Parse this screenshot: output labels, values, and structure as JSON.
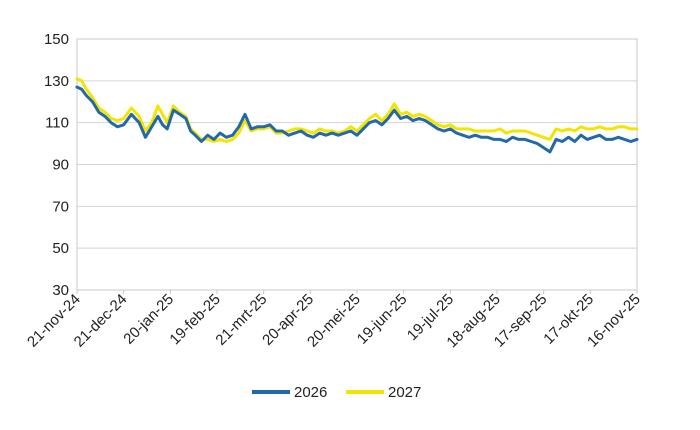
{
  "chart_data": {
    "type": "line",
    "title": "",
    "xlabel": "",
    "ylabel": "",
    "ylim": [
      30,
      150
    ],
    "yticks": [
      30,
      50,
      70,
      90,
      110,
      130,
      150
    ],
    "grid": "horizontal",
    "legend_position": "bottom-center",
    "x_tick_labels": [
      "21-nov-24",
      "21-dec-24",
      "20-jan-25",
      "19-feb-25",
      "21-mrt-25",
      "20-apr-25",
      "20-mei-25",
      "19-jun-25",
      "19-jul-25",
      "18-aug-25",
      "17-sep-25",
      "17-okt-25",
      "16-nov-25"
    ],
    "x_index_range": [
      0,
      360
    ],
    "series": [
      {
        "name": "2026",
        "color": "#2369a8",
        "x": [
          0,
          3,
          6,
          10,
          14,
          18,
          22,
          26,
          30,
          35,
          40,
          44,
          48,
          52,
          55,
          58,
          62,
          66,
          70,
          73,
          76,
          80,
          84,
          88,
          92,
          96,
          100,
          104,
          108,
          112,
          116,
          120,
          124,
          128,
          132,
          136,
          140,
          144,
          148,
          152,
          156,
          160,
          164,
          168,
          172,
          176,
          180,
          184,
          188,
          192,
          196,
          200,
          204,
          208,
          212,
          216,
          220,
          224,
          228,
          232,
          236,
          240,
          244,
          248,
          252,
          256,
          260,
          264,
          268,
          272,
          276,
          280,
          284,
          288,
          292,
          296,
          300,
          304,
          308,
          312,
          316,
          320,
          324,
          328,
          332,
          336,
          340,
          344,
          348,
          352,
          356,
          360
        ],
        "y": [
          127,
          126,
          123,
          120,
          115,
          113,
          110,
          108,
          109,
          114,
          110,
          103,
          108,
          113,
          109,
          107,
          116,
          114,
          112,
          106,
          104,
          101,
          104,
          102,
          105,
          103,
          104,
          108,
          114,
          107,
          108,
          108,
          109,
          106,
          106,
          104,
          105,
          106,
          104,
          103,
          105,
          104,
          105,
          104,
          105,
          106,
          104,
          107,
          110,
          111,
          109,
          112,
          116,
          112,
          113,
          111,
          112,
          111,
          109,
          107,
          106,
          107,
          105,
          104,
          103,
          104,
          103,
          103,
          102,
          102,
          101,
          103,
          102,
          102,
          101,
          100,
          98,
          96,
          102,
          101,
          103,
          101,
          104,
          102,
          103,
          104,
          102,
          102,
          103,
          102,
          101,
          102
        ]
      },
      {
        "name": "2027",
        "color": "#f2e500",
        "x": [
          0,
          3,
          6,
          10,
          14,
          18,
          22,
          26,
          30,
          35,
          40,
          44,
          48,
          52,
          55,
          58,
          62,
          66,
          70,
          73,
          76,
          80,
          84,
          88,
          92,
          96,
          100,
          104,
          108,
          112,
          116,
          120,
          124,
          128,
          132,
          136,
          140,
          144,
          148,
          152,
          156,
          160,
          164,
          168,
          172,
          176,
          180,
          184,
          188,
          192,
          196,
          200,
          204,
          208,
          212,
          216,
          220,
          224,
          228,
          232,
          236,
          240,
          244,
          248,
          252,
          256,
          260,
          264,
          268,
          272,
          276,
          280,
          284,
          288,
          292,
          296,
          300,
          304,
          308,
          312,
          316,
          320,
          324,
          328,
          332,
          336,
          340,
          344,
          348,
          352,
          356,
          360
        ],
        "y": [
          131,
          130,
          126,
          122,
          117,
          115,
          112,
          111,
          112,
          117,
          113,
          106,
          110,
          118,
          114,
          110,
          118,
          115,
          113,
          107,
          105,
          102,
          102,
          101,
          102,
          101,
          102,
          105,
          111,
          106,
          107,
          107,
          108,
          105,
          105,
          106,
          107,
          107,
          106,
          105,
          107,
          106,
          106,
          105,
          106,
          108,
          106,
          109,
          112,
          114,
          111,
          114,
          119,
          114,
          115,
          113,
          114,
          113,
          111,
          109,
          108,
          109,
          107,
          107,
          107,
          106,
          106,
          106,
          106,
          107,
          105,
          106,
          106,
          106,
          105,
          104,
          103,
          102,
          107,
          106,
          107,
          106,
          108,
          107,
          107,
          108,
          107,
          107,
          108,
          108,
          107,
          107
        ]
      }
    ]
  }
}
